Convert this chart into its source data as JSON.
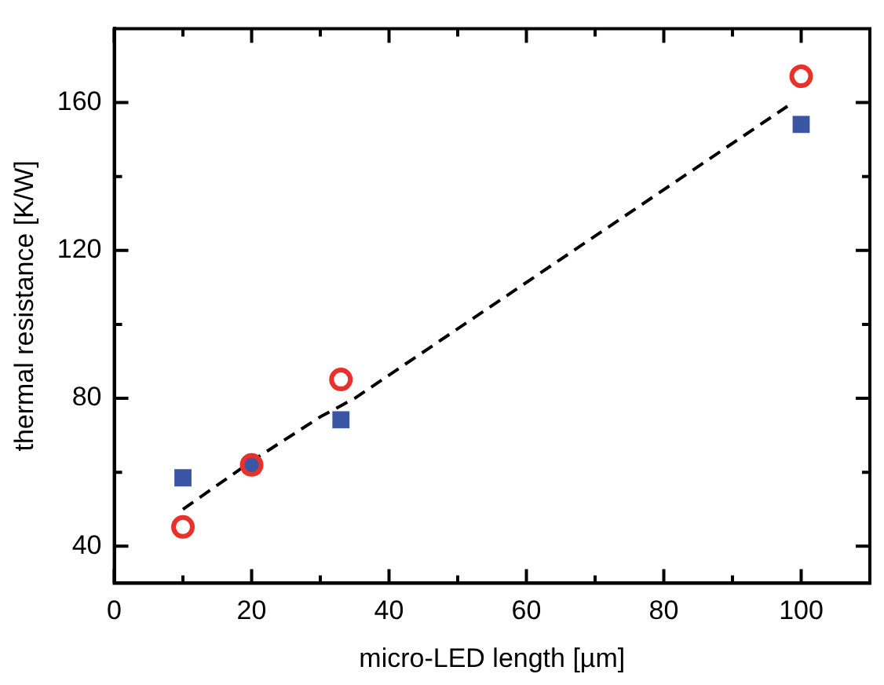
{
  "chart_data": {
    "type": "scatter",
    "xlabel": "micro-LED length [µm]",
    "ylabel": "thermal resistance [K/W]",
    "xlim": [
      0,
      110
    ],
    "ylim": [
      30,
      180
    ],
    "xticks": [
      0,
      {
        "value": 10,
        "label": null
      },
      20,
      {
        "value": 30,
        "label": null
      },
      40,
      {
        "value": 50,
        "label": null
      },
      60,
      {
        "value": 70,
        "label": null
      },
      80,
      {
        "value": 90,
        "label": null
      },
      100
    ],
    "yticks": [
      40,
      {
        "value": 60,
        "label": null
      },
      80,
      {
        "value": 100,
        "label": null
      },
      120,
      {
        "value": 140,
        "label": null
      },
      160
    ],
    "grid": false,
    "legend": false,
    "series": [
      {
        "type": "line",
        "color": "#000000",
        "line_style": "dashed",
        "marker": "none",
        "x": [
          10,
          20,
          30,
          35,
          98
        ],
        "values": [
          50,
          63,
          75,
          80,
          159
        ]
      },
      {
        "type": "scatter",
        "color": "#3a55a4",
        "marker": "square",
        "x": [
          10,
          20,
          33,
          100
        ],
        "values": [
          58.5,
          62,
          74.2,
          154.1
        ]
      },
      {
        "type": "scatter",
        "color": "#e8312a",
        "marker": "circle",
        "x": [
          10,
          20,
          33,
          100
        ],
        "values": [
          45.2,
          62,
          85.1,
          167.1
        ]
      }
    ]
  }
}
